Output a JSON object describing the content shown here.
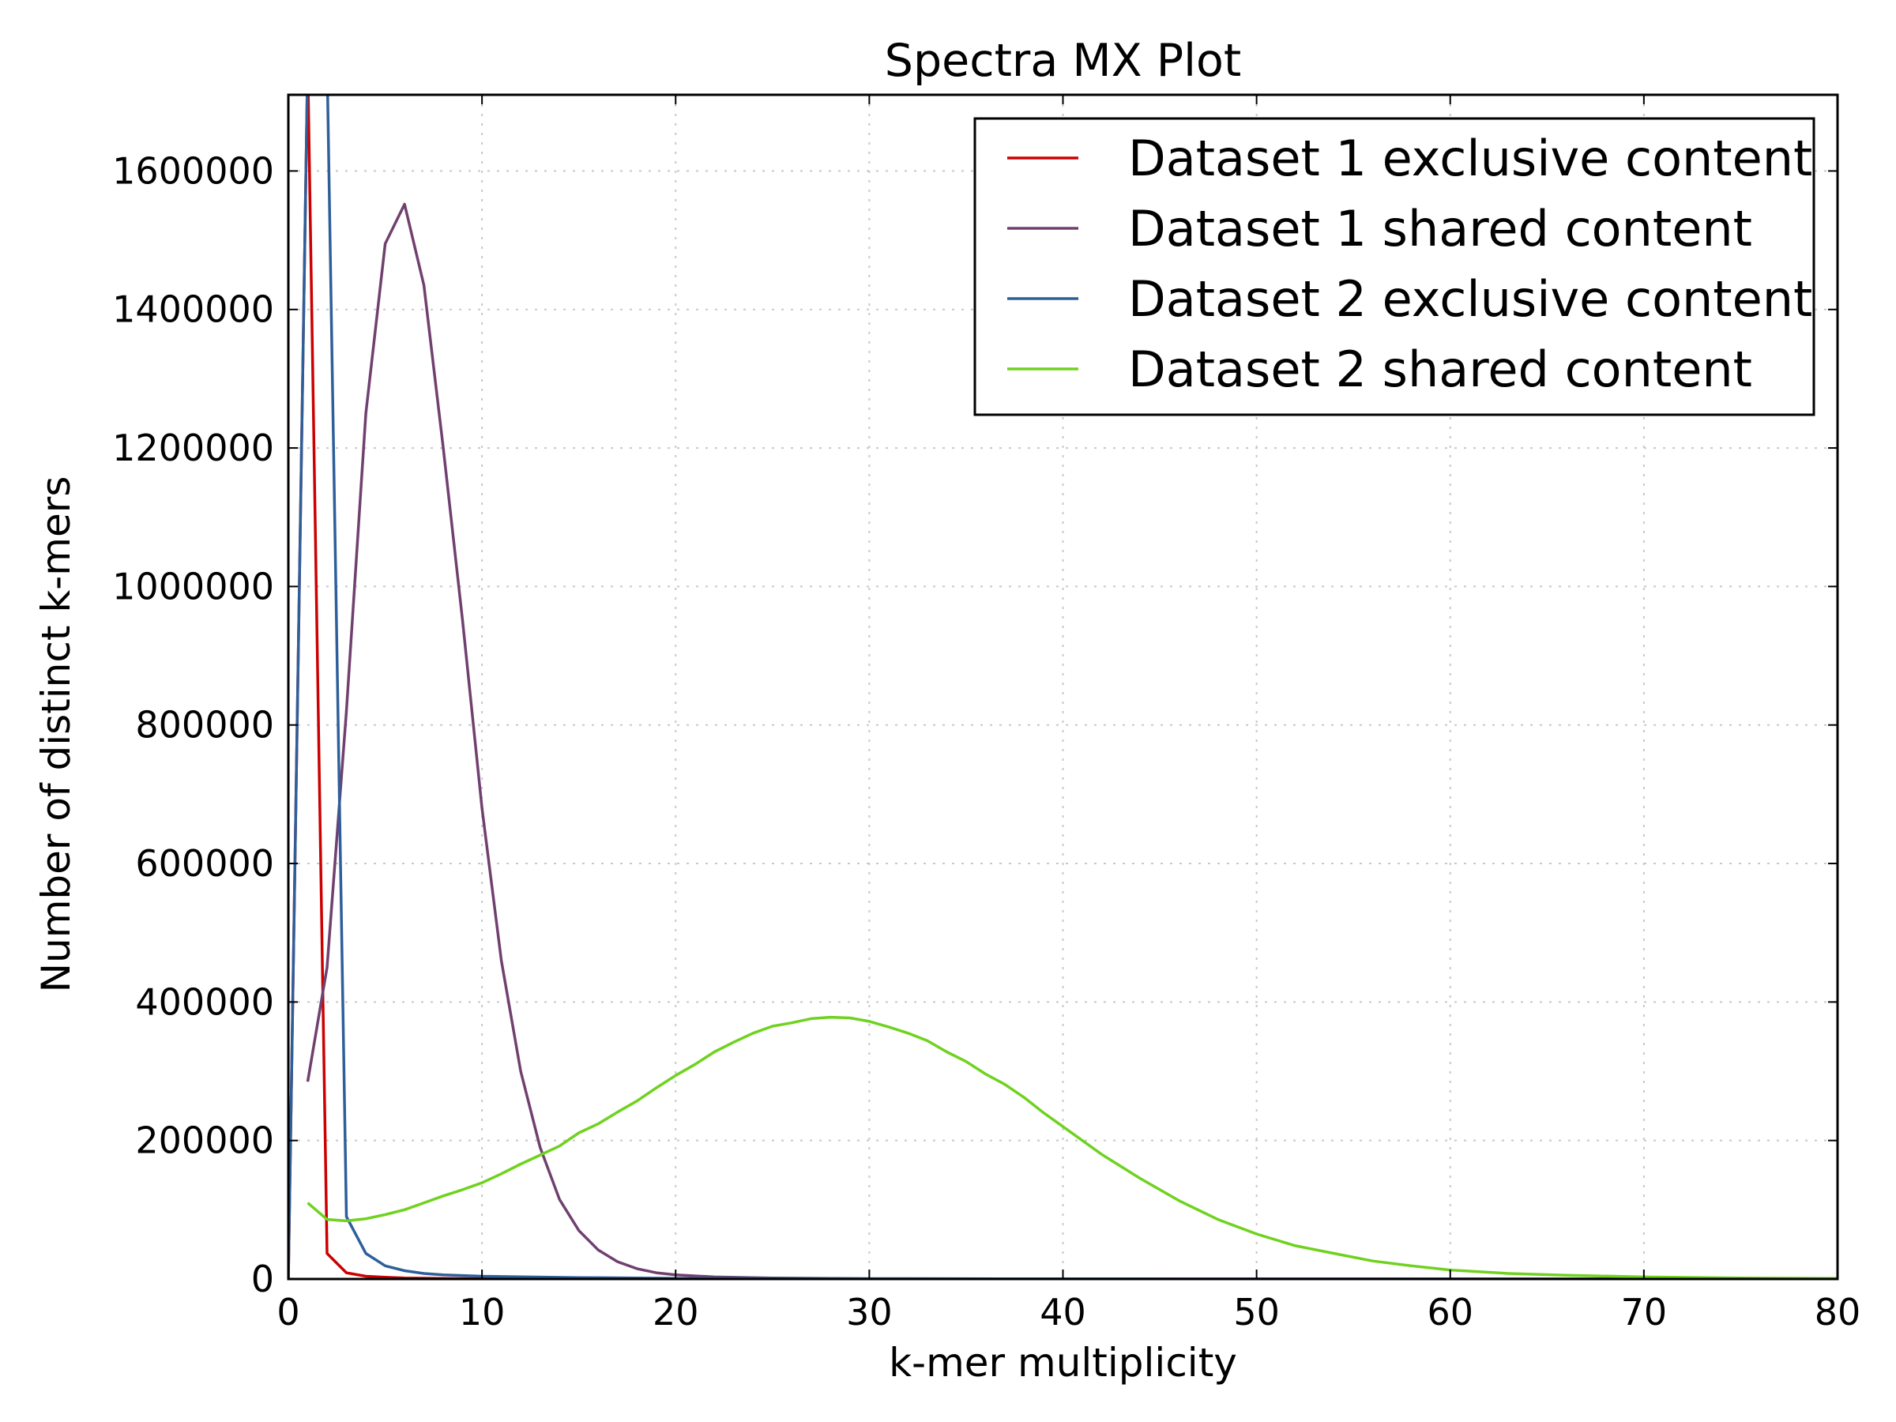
{
  "chart_data": {
    "type": "line",
    "title": "Spectra MX Plot",
    "xlabel": "k-mer multiplicity",
    "ylabel": "Number of distinct k-mers",
    "xlim": [
      0,
      80
    ],
    "ylim": [
      0,
      1710000
    ],
    "xticks": [
      0,
      10,
      20,
      30,
      40,
      50,
      60,
      70,
      80
    ],
    "yticks": [
      0,
      200000,
      400000,
      600000,
      800000,
      1000000,
      1200000,
      1400000,
      1600000
    ],
    "grid": true,
    "legend_position": "top-right",
    "series": [
      {
        "name": "Dataset 1 exclusive content",
        "color": "#cc0000",
        "x": [
          0,
          1,
          2,
          3,
          4,
          5,
          6,
          8,
          10,
          15,
          20,
          30,
          40,
          80
        ],
        "y": [
          0,
          1760000,
          37000,
          9000,
          4000,
          2500,
          1500,
          800,
          500,
          200,
          100,
          50,
          20,
          0
        ]
      },
      {
        "name": "Dataset 1 shared content",
        "color": "#70406f",
        "x": [
          1,
          2,
          3,
          4,
          5,
          6,
          7,
          8,
          9,
          10,
          11,
          12,
          13,
          14,
          15,
          16,
          17,
          18,
          19,
          20,
          22,
          25,
          30,
          40,
          50,
          80
        ],
        "y": [
          285000,
          450000,
          820000,
          1250000,
          1495000,
          1552000,
          1435000,
          1200000,
          950000,
          680000,
          460000,
          300000,
          190000,
          115000,
          70000,
          42000,
          25000,
          15000,
          9000,
          6000,
          3000,
          1500,
          500,
          100,
          50,
          0
        ]
      },
      {
        "name": "Dataset 2 exclusive content",
        "color": "#2e5f9a",
        "x": [
          0,
          1,
          2,
          3,
          4,
          5,
          6,
          7,
          8,
          10,
          15,
          20,
          30,
          50,
          80
        ],
        "y": [
          0,
          1760000,
          1760000,
          90000,
          37000,
          19000,
          12000,
          8000,
          6000,
          4000,
          2000,
          1000,
          500,
          100,
          0
        ]
      },
      {
        "name": "Dataset 2 shared content",
        "color": "#6fd21f",
        "x": [
          1,
          2,
          3,
          4,
          5,
          6,
          7,
          8,
          9,
          10,
          11,
          12,
          13,
          14,
          15,
          16,
          17,
          18,
          19,
          20,
          21,
          22,
          23,
          24,
          25,
          26,
          27,
          28,
          29,
          30,
          31,
          32,
          33,
          34,
          35,
          36,
          37,
          38,
          39,
          40,
          42,
          44,
          46,
          48,
          50,
          52,
          54,
          56,
          58,
          60,
          63,
          66,
          70,
          75,
          80
        ],
        "y": [
          110000,
          86000,
          84000,
          87000,
          93000,
          100000,
          110000,
          120000,
          129000,
          139000,
          152000,
          166000,
          179000,
          192000,
          211000,
          224000,
          241000,
          257000,
          276000,
          294000,
          310000,
          328000,
          342000,
          355000,
          365000,
          370000,
          376000,
          378000,
          377000,
          372000,
          364000,
          355000,
          344000,
          328000,
          314000,
          296000,
          281000,
          262000,
          240000,
          220000,
          180000,
          145000,
          113000,
          86000,
          65000,
          48000,
          37000,
          26000,
          19000,
          13000,
          8000,
          5500,
          3000,
          1500,
          800
        ]
      }
    ]
  }
}
